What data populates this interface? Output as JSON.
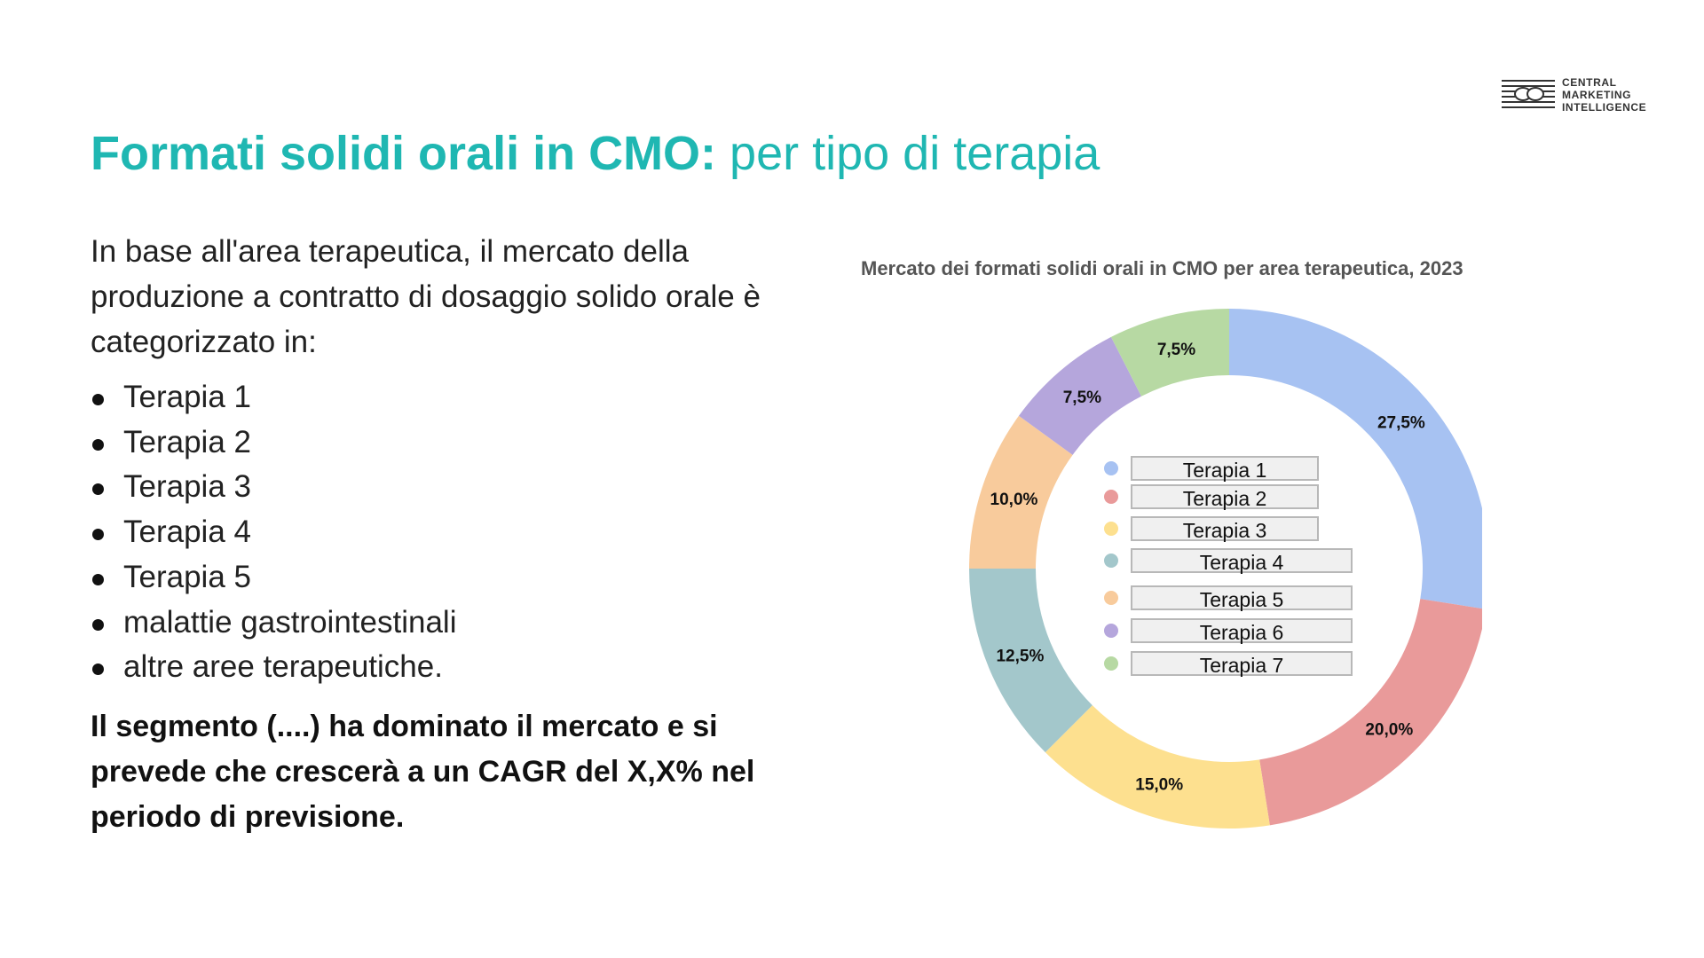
{
  "brand": {
    "lines": [
      "CENTRAL",
      "MARKETING",
      "INTELLIGENCE"
    ]
  },
  "title": {
    "strong": "Formati solidi orali in CMO:",
    "light": " per tipo di terapia"
  },
  "intro": "In base all'area terapeutica, il mercato della produzione a contratto di dosaggio solido orale è categorizzato in:",
  "bullets": [
    "Terapia 1",
    "Terapia 2",
    "Terapia 3",
    "Terapia 4",
    "Terapia 5",
    "malattie gastrointestinali",
    "altre aree terapeutiche."
  ],
  "conclusion": "Il segmento (....) ha dominato il mercato e si prevede che crescerà a un CAGR del X,X% nel periodo di previsione.",
  "chart_data": {
    "type": "pie",
    "donut": true,
    "title": "Mercato dei formati solidi orali in CMO per area terapeutica, 2023",
    "categories": [
      "Terapia 1",
      "Terapia 2",
      "Terapia 3",
      "Terapia 4",
      "Terapia 5",
      "Terapia 6",
      "Terapia 7"
    ],
    "values": [
      27.5,
      20.0,
      15.0,
      12.5,
      10.0,
      7.5,
      7.5
    ],
    "data_labels": [
      "27,5%",
      "20,0%",
      "15,0%",
      "12,5%",
      "10,0%",
      "7,5%",
      "7,5%"
    ],
    "colors": [
      "#a7c2f2",
      "#e99a9a",
      "#fde08f",
      "#a3c7cb",
      "#f8cb9c",
      "#b5a6dc",
      "#b7d9a3"
    ],
    "legend_position": "center"
  }
}
